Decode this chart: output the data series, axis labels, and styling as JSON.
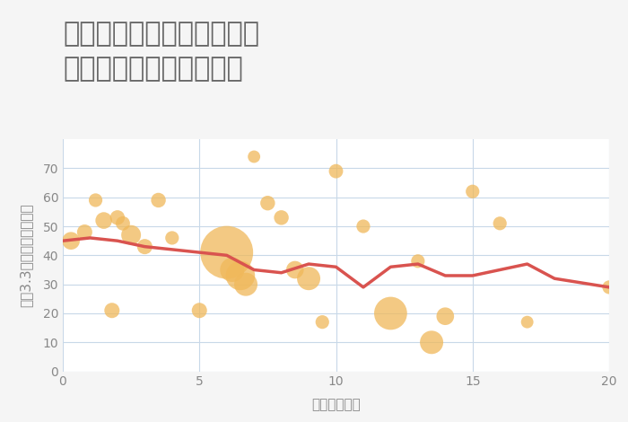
{
  "title": "奈良県磯城郡三宅町石見の\n駅距離別中古戸建て価格",
  "xlabel": "駅距離（分）",
  "ylabel": "坪（3.3㎡）単価（万円）",
  "xlim": [
    0,
    20
  ],
  "ylim": [
    0,
    80
  ],
  "yticks": [
    0,
    10,
    20,
    30,
    40,
    50,
    60,
    70
  ],
  "xticks": [
    0,
    5,
    10,
    15,
    20
  ],
  "bg_color": "#f5f5f5",
  "plot_bg_color": "#ffffff",
  "scatter_color": "#f0b85a",
  "scatter_alpha": 0.75,
  "line_color": "#d9534f",
  "line_width": 2.5,
  "scatter_x": [
    0.3,
    0.8,
    1.2,
    1.5,
    1.8,
    2.0,
    2.2,
    2.5,
    3.0,
    3.5,
    4.0,
    5.0,
    6.0,
    6.2,
    6.5,
    6.7,
    7.0,
    7.5,
    8.0,
    8.5,
    9.0,
    9.5,
    10.0,
    11.0,
    12.0,
    13.0,
    13.5,
    14.0,
    15.0,
    16.0,
    17.0,
    20.0
  ],
  "scatter_y": [
    45,
    48,
    59,
    52,
    21,
    53,
    51,
    47,
    43,
    59,
    46,
    21,
    41,
    35,
    33,
    30,
    74,
    58,
    53,
    35,
    32,
    17,
    69,
    50,
    20,
    38,
    10,
    19,
    62,
    51,
    17,
    29
  ],
  "scatter_size": [
    200,
    150,
    120,
    180,
    150,
    140,
    130,
    250,
    150,
    140,
    120,
    150,
    1800,
    380,
    550,
    350,
    100,
    140,
    140,
    200,
    350,
    120,
    130,
    120,
    700,
    120,
    350,
    200,
    120,
    120,
    100,
    120
  ],
  "line_x": [
    0,
    1,
    2,
    3,
    4,
    5,
    6,
    7,
    8,
    9,
    10,
    11,
    12,
    13,
    14,
    15,
    16,
    17,
    18,
    20
  ],
  "line_y": [
    45,
    46,
    45,
    43,
    42,
    41,
    40,
    35,
    34,
    37,
    36,
    29,
    36,
    37,
    33,
    33,
    35,
    37,
    32,
    29
  ],
  "title_fontsize": 22,
  "label_fontsize": 11,
  "tick_fontsize": 10,
  "annotation_fontsize": 9,
  "annotation_color": "#7a9bbf",
  "title_color": "#666666",
  "axis_color": "#888888"
}
